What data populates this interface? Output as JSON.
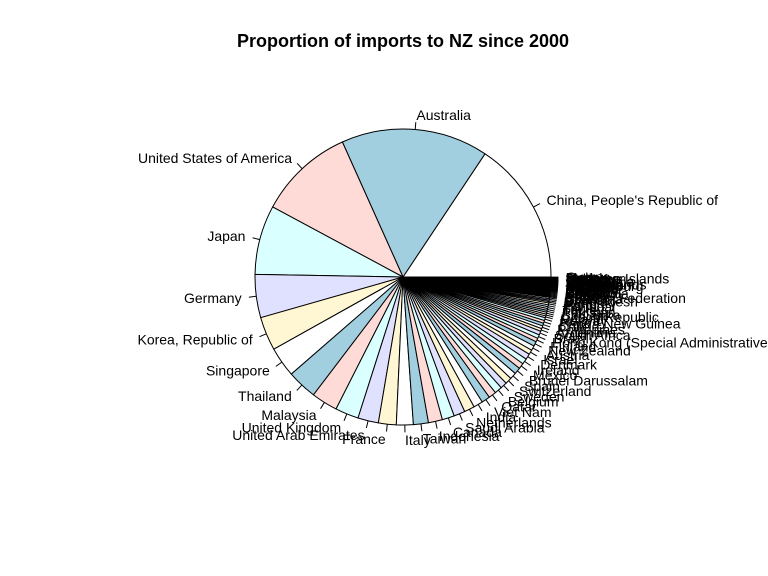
{
  "chart_data": {
    "type": "pie",
    "title": "Proportion of imports to NZ since 2000",
    "palette": [
      "#ffffff",
      "#a1cfe0",
      "#ffdbd8",
      "#d9ffff",
      "#e0e0ff",
      "#fff6d3"
    ],
    "slices": [
      {
        "label": "China, People's Republic of",
        "value": 15.3
      },
      {
        "label": "Australia",
        "value": 15.7
      },
      {
        "label": "United States of America",
        "value": 10.2
      },
      {
        "label": "Japan",
        "value": 7.4
      },
      {
        "label": "Germany",
        "value": 4.6
      },
      {
        "label": "Korea, Republic of",
        "value": 3.6
      },
      {
        "label": "Singapore",
        "value": 3.2
      },
      {
        "label": "Thailand",
        "value": 3.2
      },
      {
        "label": "Malaysia",
        "value": 2.8
      },
      {
        "label": "United Kingdom",
        "value": 2.5
      },
      {
        "label": "United Arab Emirates",
        "value": 2.2
      },
      {
        "label": "France",
        "value": 1.9
      },
      {
        "label": "Italy",
        "value": 1.8
      },
      {
        "label": "Taiwan",
        "value": 1.6
      },
      {
        "label": "Indonesia",
        "value": 1.5
      },
      {
        "label": "Canada",
        "value": 1.3
      },
      {
        "label": "Saudi Arabia",
        "value": 1.2
      },
      {
        "label": "Netherlands",
        "value": 1.1
      },
      {
        "label": "India",
        "value": 1.0
      },
      {
        "label": "Viet Nam",
        "value": 0.9
      },
      {
        "label": "Qatar",
        "value": 0.8
      },
      {
        "label": "Belgium",
        "value": 0.8
      },
      {
        "label": "Sweden",
        "value": 0.7
      },
      {
        "label": "Switzerland",
        "value": 0.7
      },
      {
        "label": "Spain",
        "value": 0.7
      },
      {
        "label": "Brunei Darussalam",
        "value": 0.7
      },
      {
        "label": "Mexico",
        "value": 0.6
      },
      {
        "label": "Ireland",
        "value": 0.6
      },
      {
        "label": "Denmark",
        "value": 0.6
      },
      {
        "label": "Israel",
        "value": 0.5
      },
      {
        "label": "Austria",
        "value": 0.5
      },
      {
        "label": "New Zealand",
        "value": 0.5
      },
      {
        "label": "Finland",
        "value": 0.4
      },
      {
        "label": "Hong Kong (Special Administrative Region)",
        "value": 0.4
      },
      {
        "label": "Brazil",
        "value": 0.4
      },
      {
        "label": "South Africa",
        "value": 0.3
      },
      {
        "label": "Argentina",
        "value": 0.3
      },
      {
        "label": "Philippines",
        "value": 0.3
      },
      {
        "label": "Chile",
        "value": 0.3
      },
      {
        "label": "Papua New Guinea",
        "value": 0.3
      },
      {
        "label": "Norway",
        "value": 0.2
      },
      {
        "label": "Poland",
        "value": 0.2
      },
      {
        "label": "Czech Republic",
        "value": 0.2
      },
      {
        "label": "Sri Lanka",
        "value": 0.2
      },
      {
        "label": "Pakistan",
        "value": 0.2
      },
      {
        "label": "Turkey",
        "value": 0.2
      },
      {
        "label": "Fiji",
        "value": 0.2
      },
      {
        "label": "Portugal",
        "value": 0.2
      },
      {
        "label": "Peru",
        "value": 0.15
      },
      {
        "label": "Hungary",
        "value": 0.15
      },
      {
        "label": "Bangladesh",
        "value": 0.15
      },
      {
        "label": "Greece",
        "value": 0.15
      },
      {
        "label": "Colombia",
        "value": 0.1
      },
      {
        "label": "Russian Federation",
        "value": 0.1
      },
      {
        "label": "Oman",
        "value": 0.1
      },
      {
        "label": "Kuwait",
        "value": 0.1
      },
      {
        "label": "Samoa",
        "value": 0.1
      },
      {
        "label": "Cambodia",
        "value": 0.1
      },
      {
        "label": "Ecuador",
        "value": 0.08
      },
      {
        "label": "Uruguay",
        "value": 0.08
      },
      {
        "label": "Egypt",
        "value": 0.08
      },
      {
        "label": "Tonga",
        "value": 0.08
      },
      {
        "label": "Romania",
        "value": 0.08
      },
      {
        "label": "Slovenia",
        "value": 0.06
      },
      {
        "label": "Iran",
        "value": 0.06
      },
      {
        "label": "Nigeria",
        "value": 0.06
      },
      {
        "label": "Kenya",
        "value": 0.06
      },
      {
        "label": "Luxembourg",
        "value": 0.06
      },
      {
        "label": "Lithuania",
        "value": 0.05
      },
      {
        "label": "Bulgaria",
        "value": 0.05
      },
      {
        "label": "Cook Islands",
        "value": 0.05
      },
      {
        "label": "Vanuatu",
        "value": 0.05
      },
      {
        "label": "Morocco",
        "value": 0.05
      },
      {
        "label": "Estonia",
        "value": 0.05
      },
      {
        "label": "Slovakia",
        "value": 0.04
      },
      {
        "label": "Costa Rica",
        "value": 0.04
      },
      {
        "label": "Guatemala",
        "value": 0.04
      },
      {
        "label": "Ukraine",
        "value": 0.04
      },
      {
        "label": "Iceland",
        "value": 0.04
      },
      {
        "label": "Croatia",
        "value": 0.04
      },
      {
        "label": "Tunisia",
        "value": 0.03
      },
      {
        "label": "Latvia",
        "value": 0.03
      },
      {
        "label": "Macao",
        "value": 0.03
      },
      {
        "label": "Mauritius",
        "value": 0.03
      },
      {
        "label": "Solomon Islands",
        "value": 0.03
      },
      {
        "label": "Myanmar",
        "value": 0.03
      },
      {
        "label": "Nepal",
        "value": 0.03
      },
      {
        "label": "Jordan",
        "value": 0.03
      },
      {
        "label": "Malta",
        "value": 0.03
      },
      {
        "label": "Cyprus",
        "value": 0.03
      }
    ]
  }
}
